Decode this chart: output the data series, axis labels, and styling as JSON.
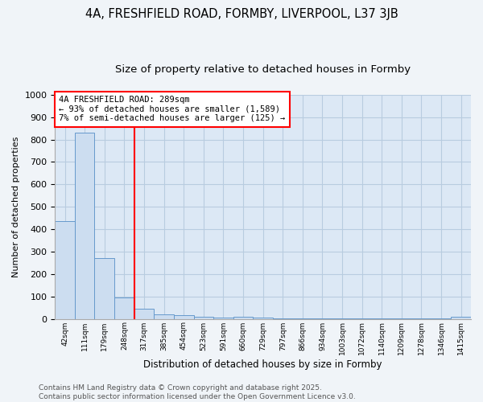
{
  "title1": "4A, FRESHFIELD ROAD, FORMBY, LIVERPOOL, L37 3JB",
  "title2": "Size of property relative to detached houses in Formby",
  "xlabel": "Distribution of detached houses by size in Formby",
  "ylabel": "Number of detached properties",
  "bin_labels": [
    "42sqm",
    "111sqm",
    "179sqm",
    "248sqm",
    "317sqm",
    "385sqm",
    "454sqm",
    "523sqm",
    "591sqm",
    "660sqm",
    "729sqm",
    "797sqm",
    "866sqm",
    "934sqm",
    "1003sqm",
    "1072sqm",
    "1140sqm",
    "1209sqm",
    "1278sqm",
    "1346sqm",
    "1415sqm"
  ],
  "bar_heights": [
    435,
    830,
    270,
    95,
    45,
    20,
    15,
    8,
    5,
    10,
    5,
    3,
    3,
    2,
    1,
    1,
    1,
    1,
    1,
    1,
    8
  ],
  "bar_color": "#ccddf0",
  "bar_edge_color": "#6699cc",
  "annotation_text": "4A FRESHFIELD ROAD: 289sqm\n← 93% of detached houses are smaller (1,589)\n7% of semi-detached houses are larger (125) →",
  "annotation_box_color": "white",
  "annotation_box_edge_color": "red",
  "red_line_color": "red",
  "ylim": [
    0,
    1000
  ],
  "yticks": [
    0,
    100,
    200,
    300,
    400,
    500,
    600,
    700,
    800,
    900,
    1000
  ],
  "footer_text": "Contains HM Land Registry data © Crown copyright and database right 2025.\nContains public sector information licensed under the Open Government Licence v3.0.",
  "fig_background_color": "#f0f4f8",
  "plot_background_color": "#dce8f5",
  "grid_color": "#b8cce0",
  "title1_fontsize": 10.5,
  "title2_fontsize": 9.5,
  "annotation_fontsize": 7.5,
  "footer_fontsize": 6.5,
  "ylabel_fontsize": 8,
  "xlabel_fontsize": 8.5
}
